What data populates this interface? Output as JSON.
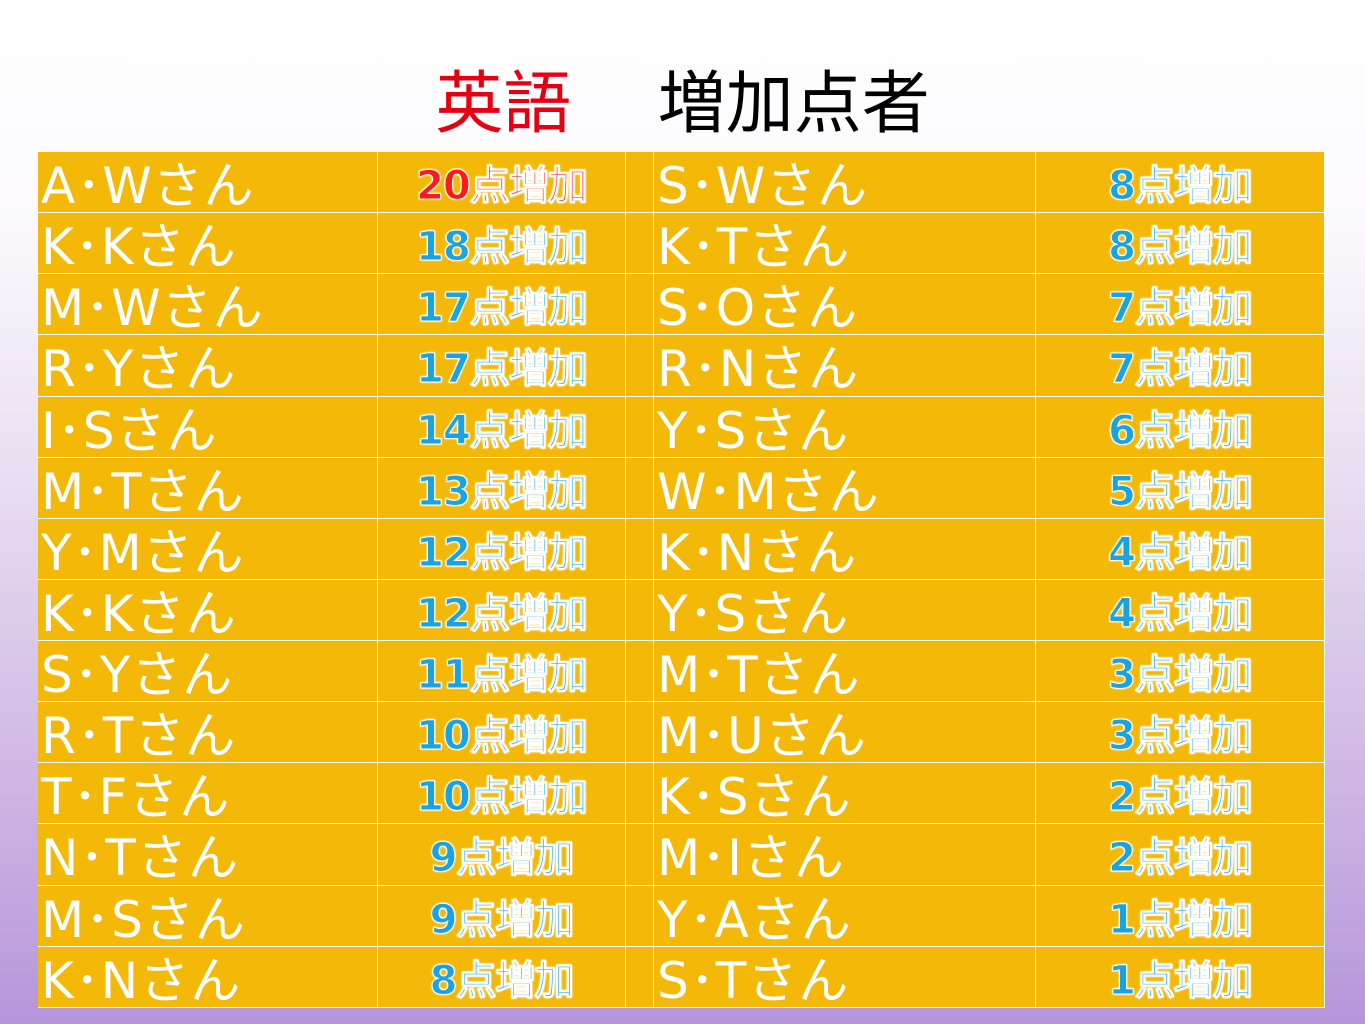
{
  "title": {
    "subject": "英語",
    "text": "増加点者"
  },
  "left_column": [
    {
      "name": "A･Wさん",
      "score": "20点増加",
      "highlight": true
    },
    {
      "name": "K･Kさん",
      "score": "18点増加"
    },
    {
      "name": "M･Wさん",
      "score": "17点増加"
    },
    {
      "name": "R･Yさん",
      "score": "17点増加"
    },
    {
      "name": "I･Sさん",
      "score": "14点増加"
    },
    {
      "name": "M･Tさん",
      "score": "13点増加"
    },
    {
      "name": "Y･Mさん",
      "score": "12点増加"
    },
    {
      "name": "K･Kさん",
      "score": "12点増加"
    },
    {
      "name": "S･Yさん",
      "score": "11点増加"
    },
    {
      "name": "R･Tさん",
      "score": "10点増加"
    },
    {
      "name": "T･Fさん",
      "score": "10点増加"
    },
    {
      "name": "N･Tさん",
      "score": "9点増加"
    },
    {
      "name": "M･Sさん",
      "score": "9点増加"
    },
    {
      "name": "K･Nさん",
      "score": "8点増加"
    }
  ],
  "right_column": [
    {
      "name": "S･Wさん",
      "score": "8点増加"
    },
    {
      "name": "K･Tさん",
      "score": "8点増加"
    },
    {
      "name": "S･Oさん",
      "score": "7点増加"
    },
    {
      "name": "R･Nさん",
      "score": "7点増加"
    },
    {
      "name": "Y･Sさん",
      "score": "6点増加"
    },
    {
      "name": "W･Mさん",
      "score": "5点増加"
    },
    {
      "name": "K･Nさん",
      "score": "4点増加"
    },
    {
      "name": "Y･Sさん",
      "score": "4点増加"
    },
    {
      "name": "M･Tさん",
      "score": "3点増加"
    },
    {
      "name": "M･Uさん",
      "score": "3点増加"
    },
    {
      "name": "K･Sさん",
      "score": "2点増加"
    },
    {
      "name": "M･Iさん",
      "score": "2点増加"
    },
    {
      "name": "Y･Aさん",
      "score": "1点増加"
    },
    {
      "name": "S･Tさん",
      "score": "1点増加"
    }
  ],
  "colors": {
    "cell_background": "#f4b808",
    "name_text": "#ffffff",
    "score_text": "#1aa3e0",
    "top_score_text": "#ff1a1a",
    "subject_text": "#e60012"
  }
}
